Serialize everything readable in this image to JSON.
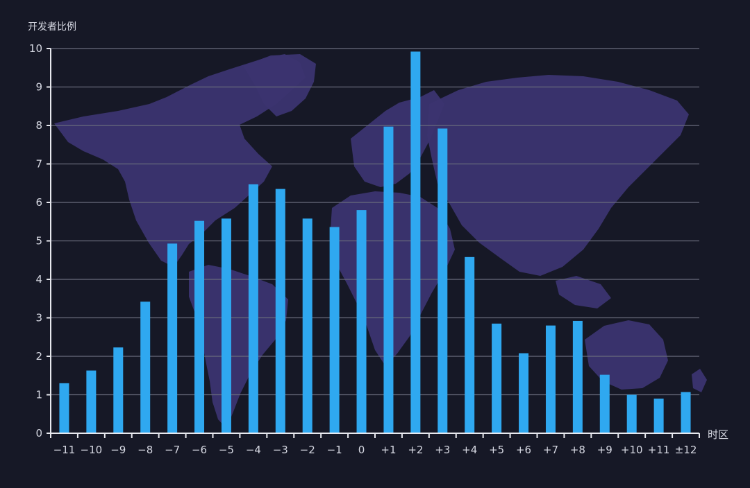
{
  "chart_data": {
    "type": "bar",
    "ylabel": "开发者比例",
    "xlabel": "时区",
    "ylim": [
      0,
      10
    ],
    "yticks": [
      0,
      1,
      2,
      3,
      4,
      5,
      6,
      7,
      8,
      9,
      10
    ],
    "grid": true,
    "categories": [
      "−11",
      "−10",
      "−9",
      "−8",
      "−7",
      "−6",
      "−5",
      "−4",
      "−3",
      "−2",
      "−1",
      "0",
      "+1",
      "+2",
      "+3",
      "+4",
      "+5",
      "+6",
      "+7",
      "+8",
      "+9",
      "+10",
      "+11",
      "±12"
    ],
    "values": [
      1.3,
      1.63,
      2.23,
      3.42,
      4.93,
      5.52,
      5.58,
      6.47,
      6.35,
      5.58,
      5.36,
      5.8,
      7.97,
      9.92,
      7.92,
      4.58,
      2.85,
      2.08,
      2.8,
      2.92,
      1.52,
      1.0,
      0.9,
      1.07
    ],
    "bar_color": "#2fa8f0",
    "background_color": "#161826",
    "map_color": "#3b3470",
    "background_image": "world-map"
  }
}
